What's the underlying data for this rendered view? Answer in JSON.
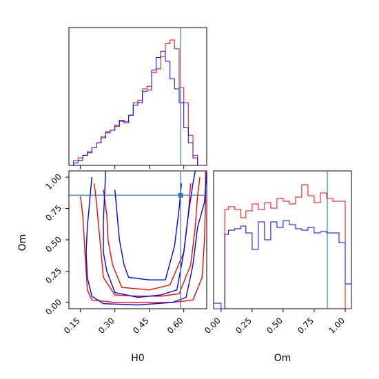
{
  "chart_data": [
    {
      "type": "histogram",
      "panel": "H0 marginal",
      "x": [
        0.1,
        0.12,
        0.14,
        0.16,
        0.18,
        0.2,
        0.22,
        0.24,
        0.26,
        0.28,
        0.3,
        0.32,
        0.34,
        0.36,
        0.38,
        0.4,
        0.42,
        0.44,
        0.46,
        0.48,
        0.5,
        0.52,
        0.54,
        0.56,
        0.58,
        0.6,
        0.62,
        0.64,
        0.66,
        0.68,
        0.7
      ],
      "xlim": [
        0.1,
        0.7
      ],
      "truth": 0.586,
      "series": [
        {
          "color": "#ff0000",
          "values": [
            0.0,
            0.04,
            0.06,
            0.08,
            0.11,
            0.14,
            0.18,
            0.23,
            0.27,
            0.28,
            0.31,
            0.35,
            0.35,
            0.4,
            0.5,
            0.52,
            0.61,
            0.63,
            0.74,
            0.77,
            0.87,
            0.97,
            1.0,
            0.93,
            0.62,
            0.5,
            0.24,
            0.08,
            0.0
          ]
        },
        {
          "color": "#0000ff",
          "values": [
            0.0,
            0.02,
            0.04,
            0.08,
            0.1,
            0.14,
            0.18,
            0.22,
            0.26,
            0.28,
            0.32,
            0.36,
            0.34,
            0.4,
            0.48,
            0.5,
            0.59,
            0.6,
            0.76,
            0.86,
            0.91,
            0.83,
            0.69,
            0.61,
            0.5,
            0.3,
            0.18,
            0.06,
            0.0
          ]
        }
      ]
    },
    {
      "type": "contour",
      "panel": "H0 vs Om joint",
      "xlabel": "H0",
      "ylabel": "Om",
      "xlim": [
        0.1,
        0.7
      ],
      "ylim": [
        -0.05,
        1.05
      ],
      "xticks": [
        "0.15",
        "0.30",
        "0.45",
        "0.60"
      ],
      "yticks": [
        "0.00",
        "0.25",
        "0.50",
        "0.75",
        "1.00"
      ],
      "truth": {
        "H0": 0.586,
        "Om": 0.856
      },
      "series": [
        {
          "color": "#ff0000",
          "contours": [
            [
              [
                0.15,
                0.85
              ],
              [
                0.16,
                0.7
              ],
              [
                0.165,
                0.55
              ],
              [
                0.17,
                0.4
              ],
              [
                0.175,
                0.25
              ],
              [
                0.18,
                0.1
              ],
              [
                0.2,
                0.02
              ],
              [
                0.3,
                0.0
              ],
              [
                0.45,
                0.0
              ],
              [
                0.55,
                0.0
              ],
              [
                0.64,
                0.02
              ],
              [
                0.68,
                0.2
              ],
              [
                0.69,
                0.5
              ],
              [
                0.695,
                0.8
              ],
              [
                0.695,
                1.05
              ]
            ],
            [
              [
                0.21,
                0.95
              ],
              [
                0.22,
                0.8
              ],
              [
                0.23,
                0.6
              ],
              [
                0.24,
                0.4
              ],
              [
                0.25,
                0.2
              ],
              [
                0.3,
                0.06
              ],
              [
                0.4,
                0.05
              ],
              [
                0.5,
                0.05
              ],
              [
                0.58,
                0.07
              ],
              [
                0.63,
                0.3
              ],
              [
                0.65,
                0.6
              ],
              [
                0.66,
                0.85
              ],
              [
                0.67,
                1.0
              ]
            ],
            [
              [
                0.25,
                0.9
              ],
              [
                0.265,
                0.7
              ],
              [
                0.27,
                0.5
              ],
              [
                0.29,
                0.3
              ],
              [
                0.33,
                0.12
              ],
              [
                0.45,
                0.1
              ],
              [
                0.54,
                0.14
              ],
              [
                0.6,
                0.4
              ],
              [
                0.62,
                0.7
              ],
              [
                0.63,
                0.95
              ]
            ]
          ]
        },
        {
          "color": "#0000ff",
          "contours": [
            [
              [
                0.2,
                1.0
              ],
              [
                0.19,
                0.8
              ],
              [
                0.18,
                0.6
              ],
              [
                0.175,
                0.4
              ],
              [
                0.18,
                0.2
              ],
              [
                0.2,
                0.05
              ],
              [
                0.25,
                -0.01
              ],
              [
                0.4,
                -0.02
              ],
              [
                0.55,
                0.0
              ],
              [
                0.61,
                0.04
              ],
              [
                0.64,
                0.3
              ],
              [
                0.66,
                0.6
              ],
              [
                0.69,
                0.8
              ],
              [
                0.7,
                1.05
              ]
            ],
            [
              [
                0.26,
                1.05
              ],
              [
                0.255,
                0.85
              ],
              [
                0.25,
                0.65
              ],
              [
                0.25,
                0.4
              ],
              [
                0.265,
                0.25
              ],
              [
                0.3,
                0.08
              ],
              [
                0.4,
                0.04
              ],
              [
                0.5,
                0.06
              ],
              [
                0.57,
                0.1
              ],
              [
                0.6,
                0.4
              ],
              [
                0.62,
                0.7
              ],
              [
                0.64,
                0.95
              ],
              [
                0.65,
                1.05
              ]
            ],
            [
              [
                0.3,
                0.9
              ],
              [
                0.31,
                0.7
              ],
              [
                0.32,
                0.5
              ],
              [
                0.34,
                0.3
              ],
              [
                0.36,
                0.2
              ],
              [
                0.45,
                0.18
              ],
              [
                0.52,
                0.18
              ],
              [
                0.56,
                0.45
              ],
              [
                0.58,
                0.75
              ],
              [
                0.59,
                0.95
              ]
            ]
          ]
        }
      ]
    },
    {
      "type": "histogram",
      "panel": "Om marginal",
      "x": [
        -0.06,
        0.0,
        0.03,
        0.06,
        0.11,
        0.16,
        0.2,
        0.25,
        0.3,
        0.35,
        0.4,
        0.45,
        0.5,
        0.55,
        0.6,
        0.65,
        0.7,
        0.75,
        0.8,
        0.85,
        0.9,
        0.95,
        1.0,
        1.05
      ],
      "xlabel": "Om",
      "xlim": [
        -0.06,
        1.05
      ],
      "xticks": [
        "0.00",
        "0.25",
        "0.50",
        "0.75",
        "1.00"
      ],
      "truth": 0.856,
      "series": [
        {
          "color": "#ff0000",
          "values": [
            0.0,
            0.0,
            0.72,
            0.74,
            0.72,
            0.66,
            0.71,
            0.76,
            0.72,
            0.77,
            0.73,
            0.8,
            0.78,
            0.76,
            0.81,
            0.9,
            0.82,
            0.77,
            0.84,
            0.8,
            0.78,
            0.78,
            0.0
          ]
        },
        {
          "color": "#0000ff",
          "values": [
            0.04,
            0.0,
            0.54,
            0.57,
            0.58,
            0.6,
            0.55,
            0.43,
            0.63,
            0.5,
            0.63,
            0.59,
            0.64,
            0.61,
            0.58,
            0.57,
            0.59,
            0.55,
            0.56,
            0.55,
            0.55,
            0.48,
            0.18
          ]
        }
      ]
    }
  ],
  "colors": {
    "series_a": "#ff0000",
    "series_b": "#0000ff",
    "truth": "#3a7ab0"
  }
}
